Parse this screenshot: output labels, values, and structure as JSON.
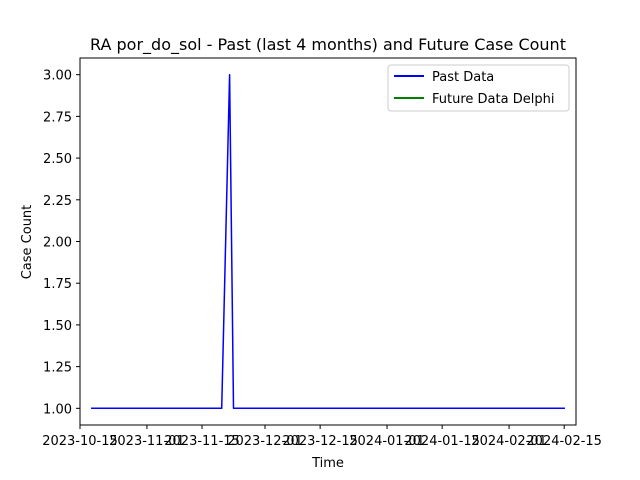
{
  "chart_data": {
    "type": "line",
    "title": "RA por_do_sol - Past (last 4 months) and Future Case Count",
    "xlabel": "Time",
    "ylabel": "Case Count",
    "xlim": [
      "2023-10-15",
      "2024-02-18"
    ],
    "ylim": [
      0.9,
      3.1
    ],
    "x_ticks": [
      "2023-10-15",
      "2023-11-01",
      "2023-11-15",
      "2023-12-01",
      "2023-12-15",
      "2024-01-01",
      "2024-01-15",
      "2024-02-01",
      "2024-02-15"
    ],
    "y_ticks": [
      "1.00",
      "1.25",
      "1.50",
      "1.75",
      "2.00",
      "2.25",
      "2.50",
      "2.75",
      "3.00"
    ],
    "legend_position": "top-right",
    "grid": false,
    "series": [
      {
        "name": "Past Data",
        "color": "#0000ff",
        "x": [
          "2023-10-18",
          "2023-11-20",
          "2023-11-22",
          "2023-11-23",
          "2024-02-15"
        ],
        "values": [
          1,
          1,
          3,
          1,
          1
        ]
      },
      {
        "name": "Future Data Delphi",
        "color": "#008000",
        "x": [],
        "values": []
      }
    ]
  }
}
